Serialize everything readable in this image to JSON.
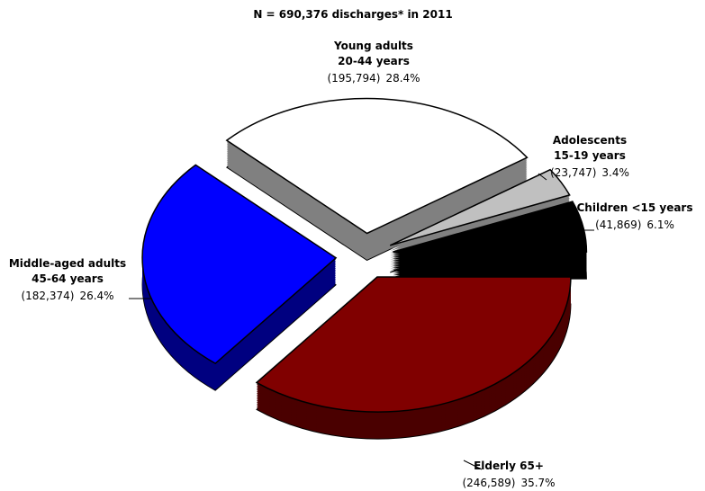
{
  "chart_data": {
    "type": "pie",
    "title": "N = 690,376 discharges* in 2011",
    "categories": [
      [
        "Elderly 65+"
      ],
      [
        "Middle-aged adults",
        "45-64 years"
      ],
      [
        "Young adults",
        "20-44 years"
      ],
      [
        "Adolescents",
        "15-19 years"
      ],
      [
        "Children <15 years"
      ]
    ],
    "values": [
      35.7,
      26.4,
      28.4,
      3.4,
      6.1
    ],
    "value_labels": [
      "35.7%",
      "26.4%",
      "28.4%",
      "3.4%",
      "6.1%"
    ],
    "counts": [
      246589,
      182374,
      195794,
      23747,
      41869
    ],
    "count_labels": [
      "(246,589)",
      "(182,374)",
      "(195,794)",
      "(23,747)",
      "(41,869)"
    ],
    "colors": [
      "#800000",
      "#0000ff",
      "#ffffff",
      "#c0c0c0",
      "#000000"
    ],
    "side_colors": [
      "#4a0000",
      "#000080",
      "#808080",
      "#808080",
      "#000000"
    ]
  }
}
